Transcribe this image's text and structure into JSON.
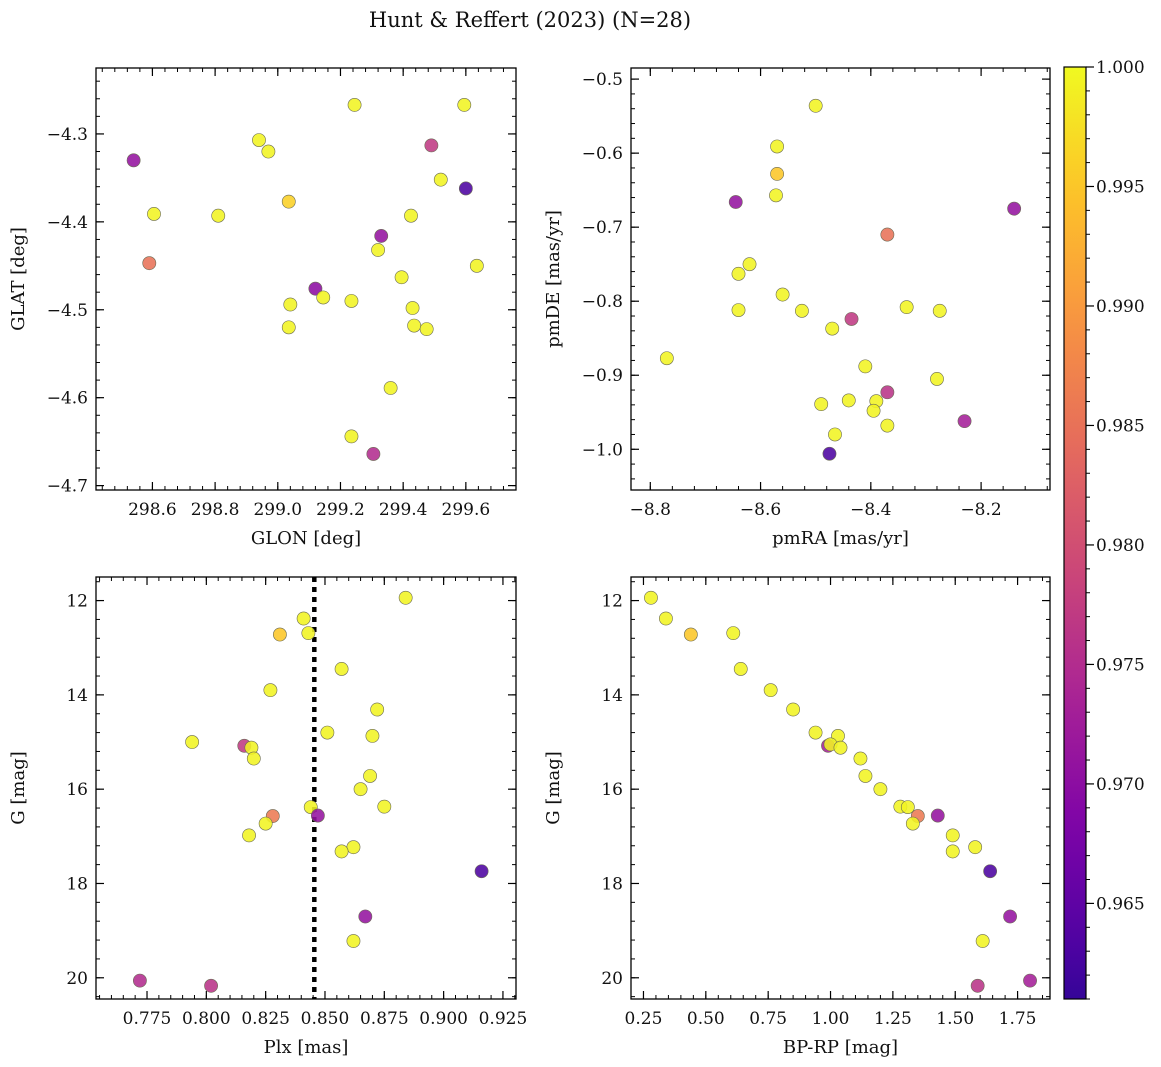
{
  "figure": {
    "title": "Hunt & Reffert (2023) (N=28)"
  },
  "colorbar": {
    "cmap": "plasma",
    "vmin": 0.961,
    "vmax": 1.0,
    "ticks": [
      0.965,
      0.97,
      0.975,
      0.98,
      0.985,
      0.99,
      0.995,
      1.0
    ],
    "tick_labels": [
      "0.965",
      "0.970",
      "0.975",
      "0.980",
      "0.985",
      "0.990",
      "0.995",
      "1.000"
    ]
  },
  "chart_data": [
    {
      "type": "scatter",
      "xlabel": "GLON [deg]",
      "ylabel": "GLAT [deg]",
      "xlim": [
        298.42,
        299.76
      ],
      "ylim": [
        -4.705,
        -4.225
      ],
      "xticks": [
        298.6,
        298.8,
        299.0,
        299.2,
        299.4,
        299.6
      ],
      "xtick_labels": [
        "298.6",
        "298.8",
        "299.0",
        "299.2",
        "299.4",
        "299.6"
      ],
      "yticks": [
        -4.3,
        -4.4,
        -4.5,
        -4.6,
        -4.7
      ],
      "ytick_labels": [
        "−4.3",
        "−4.4",
        "−4.5",
        "−4.6",
        "−4.7"
      ],
      "points": [
        {
          "x": 299.245,
          "y": -4.267,
          "c": 0.9995
        },
        {
          "x": 299.595,
          "y": -4.267,
          "c": 0.9995
        },
        {
          "x": 298.94,
          "y": -4.307,
          "c": 0.9995
        },
        {
          "x": 298.97,
          "y": -4.32,
          "c": 0.9995
        },
        {
          "x": 299.49,
          "y": -4.313,
          "c": 0.977
        },
        {
          "x": 298.54,
          "y": -4.33,
          "c": 0.971
        },
        {
          "x": 299.52,
          "y": -4.352,
          "c": 0.9995
        },
        {
          "x": 299.6,
          "y": -4.362,
          "c": 0.963
        },
        {
          "x": 299.035,
          "y": -4.377,
          "c": 0.996
        },
        {
          "x": 298.605,
          "y": -4.391,
          "c": 0.9995
        },
        {
          "x": 298.81,
          "y": -4.393,
          "c": 0.9995
        },
        {
          "x": 299.425,
          "y": -4.393,
          "c": 0.9995
        },
        {
          "x": 299.33,
          "y": -4.416,
          "c": 0.971
        },
        {
          "x": 299.32,
          "y": -4.432,
          "c": 0.9995
        },
        {
          "x": 298.59,
          "y": -4.447,
          "c": 0.985
        },
        {
          "x": 299.635,
          "y": -4.45,
          "c": 0.9995
        },
        {
          "x": 299.395,
          "y": -4.463,
          "c": 0.9995
        },
        {
          "x": 299.12,
          "y": -4.476,
          "c": 0.97
        },
        {
          "x": 299.145,
          "y": -4.486,
          "c": 0.9995
        },
        {
          "x": 299.235,
          "y": -4.49,
          "c": 0.9995
        },
        {
          "x": 299.04,
          "y": -4.494,
          "c": 0.9995
        },
        {
          "x": 299.43,
          "y": -4.498,
          "c": 0.9995
        },
        {
          "x": 299.435,
          "y": -4.518,
          "c": 0.9995
        },
        {
          "x": 299.035,
          "y": -4.52,
          "c": 0.9995
        },
        {
          "x": 299.475,
          "y": -4.522,
          "c": 0.9995
        },
        {
          "x": 299.36,
          "y": -4.589,
          "c": 0.9995
        },
        {
          "x": 299.235,
          "y": -4.644,
          "c": 0.9995
        },
        {
          "x": 299.305,
          "y": -4.664,
          "c": 0.975
        }
      ]
    },
    {
      "type": "scatter",
      "xlabel": "pmRA [mas/yr]",
      "ylabel": "pmDE [mas/yr]",
      "xlim": [
        -8.835,
        -8.075
      ],
      "ylim": [
        -1.055,
        -0.485
      ],
      "xticks": [
        -8.8,
        -8.6,
        -8.4,
        -8.2
      ],
      "xtick_labels": [
        "−8.8",
        "−8.6",
        "−8.4",
        "−8.2"
      ],
      "yticks": [
        -0.5,
        -0.6,
        -0.7,
        -0.8,
        -0.9,
        -1.0
      ],
      "ytick_labels": [
        "−0.5",
        "−0.6",
        "−0.7",
        "−0.8",
        "−0.9",
        "−1.0"
      ],
      "points": [
        {
          "x": -8.5,
          "y": -0.536,
          "c": 0.9995
        },
        {
          "x": -8.57,
          "y": -0.591,
          "c": 0.9995
        },
        {
          "x": -8.57,
          "y": -0.628,
          "c": 0.995
        },
        {
          "x": -8.572,
          "y": -0.657,
          "c": 0.9995
        },
        {
          "x": -8.645,
          "y": -0.666,
          "c": 0.971
        },
        {
          "x": -8.14,
          "y": -0.675,
          "c": 0.971
        },
        {
          "x": -8.37,
          "y": -0.71,
          "c": 0.985
        },
        {
          "x": -8.62,
          "y": -0.75,
          "c": 0.9995
        },
        {
          "x": -8.64,
          "y": -0.763,
          "c": 0.9995
        },
        {
          "x": -8.56,
          "y": -0.791,
          "c": 0.9995
        },
        {
          "x": -8.335,
          "y": -0.808,
          "c": 0.9995
        },
        {
          "x": -8.64,
          "y": -0.812,
          "c": 0.9995
        },
        {
          "x": -8.525,
          "y": -0.813,
          "c": 0.9995
        },
        {
          "x": -8.275,
          "y": -0.813,
          "c": 0.9995
        },
        {
          "x": -8.435,
          "y": -0.824,
          "c": 0.977
        },
        {
          "x": -8.47,
          "y": -0.837,
          "c": 0.9995
        },
        {
          "x": -8.77,
          "y": -0.877,
          "c": 0.9995
        },
        {
          "x": -8.41,
          "y": -0.888,
          "c": 0.9995
        },
        {
          "x": -8.28,
          "y": -0.905,
          "c": 0.9995
        },
        {
          "x": -8.37,
          "y": -0.923,
          "c": 0.976
        },
        {
          "x": -8.44,
          "y": -0.934,
          "c": 0.9995
        },
        {
          "x": -8.39,
          "y": -0.935,
          "c": 0.9995
        },
        {
          "x": -8.49,
          "y": -0.939,
          "c": 0.9995
        },
        {
          "x": -8.395,
          "y": -0.948,
          "c": 0.9995
        },
        {
          "x": -8.23,
          "y": -0.962,
          "c": 0.973
        },
        {
          "x": -8.37,
          "y": -0.968,
          "c": 0.9995
        },
        {
          "x": -8.465,
          "y": -0.98,
          "c": 0.9995
        },
        {
          "x": -8.475,
          "y": -1.006,
          "c": 0.963
        }
      ]
    },
    {
      "type": "scatter",
      "xlabel": "Plx [mas]",
      "ylabel": "G [mag]",
      "xlim": [
        0.7535,
        0.9305
      ],
      "ylim": [
        20.45,
        11.5
      ],
      "y_inverted": true,
      "vline": {
        "x": 0.8455,
        "style": "dotted"
      },
      "xticks": [
        0.775,
        0.8,
        0.825,
        0.85,
        0.875,
        0.9,
        0.925
      ],
      "xtick_labels": [
        "0.775",
        "0.800",
        "0.825",
        "0.850",
        "0.875",
        "0.900",
        "0.925"
      ],
      "yticks": [
        12,
        14,
        16,
        18,
        20
      ],
      "ytick_labels": [
        "12",
        "14",
        "16",
        "18",
        "20"
      ],
      "points": [
        {
          "x": 0.884,
          "y": 11.94,
          "c": 0.9995
        },
        {
          "x": 0.841,
          "y": 12.38,
          "c": 0.9995
        },
        {
          "x": 0.831,
          "y": 12.72,
          "c": 0.995
        },
        {
          "x": 0.843,
          "y": 12.69,
          "c": 0.9995
        },
        {
          "x": 0.857,
          "y": 13.45,
          "c": 0.9995
        },
        {
          "x": 0.827,
          "y": 13.9,
          "c": 0.9995
        },
        {
          "x": 0.872,
          "y": 14.31,
          "c": 0.9995
        },
        {
          "x": 0.851,
          "y": 14.8,
          "c": 0.9995
        },
        {
          "x": 0.87,
          "y": 14.87,
          "c": 0.9995
        },
        {
          "x": 0.794,
          "y": 15.0,
          "c": 0.9995
        },
        {
          "x": 0.816,
          "y": 15.08,
          "c": 0.977
        },
        {
          "x": 0.819,
          "y": 15.12,
          "c": 0.9995
        },
        {
          "x": 0.82,
          "y": 15.35,
          "c": 0.9995
        },
        {
          "x": 0.869,
          "y": 15.72,
          "c": 0.9995
        },
        {
          "x": 0.865,
          "y": 16.0,
          "c": 0.9995
        },
        {
          "x": 0.875,
          "y": 16.37,
          "c": 0.9995
        },
        {
          "x": 0.844,
          "y": 16.38,
          "c": 0.9995
        },
        {
          "x": 0.847,
          "y": 16.56,
          "c": 0.971
        },
        {
          "x": 0.828,
          "y": 16.57,
          "c": 0.986
        },
        {
          "x": 0.825,
          "y": 16.73,
          "c": 0.9995
        },
        {
          "x": 0.818,
          "y": 16.98,
          "c": 0.9995
        },
        {
          "x": 0.862,
          "y": 17.23,
          "c": 0.9995
        },
        {
          "x": 0.857,
          "y": 17.32,
          "c": 0.9995
        },
        {
          "x": 0.916,
          "y": 17.74,
          "c": 0.963
        },
        {
          "x": 0.867,
          "y": 18.7,
          "c": 0.971
        },
        {
          "x": 0.862,
          "y": 19.22,
          "c": 0.9995
        },
        {
          "x": 0.772,
          "y": 20.06,
          "c": 0.975
        },
        {
          "x": 0.802,
          "y": 20.17,
          "c": 0.976
        }
      ]
    },
    {
      "type": "scatter",
      "xlabel": "BP-RP [mag]",
      "ylabel": "G [mag]",
      "xlim": [
        0.2,
        1.88
      ],
      "ylim": [
        20.45,
        11.5
      ],
      "y_inverted": true,
      "xticks": [
        0.25,
        0.5,
        0.75,
        1.0,
        1.25,
        1.5,
        1.75
      ],
      "xtick_labels": [
        "0.25",
        "0.50",
        "0.75",
        "1.00",
        "1.25",
        "1.50",
        "1.75"
      ],
      "yticks": [
        12,
        14,
        16,
        18,
        20
      ],
      "ytick_labels": [
        "12",
        "14",
        "16",
        "18",
        "20"
      ],
      "points": [
        {
          "x": 0.28,
          "y": 11.94,
          "c": 0.9995
        },
        {
          "x": 0.34,
          "y": 12.38,
          "c": 0.9995
        },
        {
          "x": 0.44,
          "y": 12.72,
          "c": 0.995
        },
        {
          "x": 0.61,
          "y": 12.69,
          "c": 0.9995
        },
        {
          "x": 0.64,
          "y": 13.45,
          "c": 0.9995
        },
        {
          "x": 0.76,
          "y": 13.9,
          "c": 0.9995
        },
        {
          "x": 0.85,
          "y": 14.31,
          "c": 0.9995
        },
        {
          "x": 0.94,
          "y": 14.8,
          "c": 0.9995
        },
        {
          "x": 1.03,
          "y": 14.87,
          "c": 0.9995
        },
        {
          "x": 0.99,
          "y": 15.08,
          "c": 0.973
        },
        {
          "x": 1.0,
          "y": 15.05,
          "c": 0.9995
        },
        {
          "x": 1.04,
          "y": 15.12,
          "c": 0.9995
        },
        {
          "x": 1.12,
          "y": 15.35,
          "c": 0.9995
        },
        {
          "x": 1.14,
          "y": 15.72,
          "c": 0.9995
        },
        {
          "x": 1.2,
          "y": 16.0,
          "c": 0.9995
        },
        {
          "x": 1.28,
          "y": 16.37,
          "c": 0.9995
        },
        {
          "x": 1.31,
          "y": 16.38,
          "c": 0.9995
        },
        {
          "x": 1.35,
          "y": 16.57,
          "c": 0.986
        },
        {
          "x": 1.43,
          "y": 16.56,
          "c": 0.971
        },
        {
          "x": 1.33,
          "y": 16.73,
          "c": 0.9995
        },
        {
          "x": 1.49,
          "y": 16.98,
          "c": 0.9995
        },
        {
          "x": 1.58,
          "y": 17.23,
          "c": 0.9995
        },
        {
          "x": 1.49,
          "y": 17.32,
          "c": 0.9995
        },
        {
          "x": 1.64,
          "y": 17.74,
          "c": 0.963
        },
        {
          "x": 1.72,
          "y": 18.7,
          "c": 0.971
        },
        {
          "x": 1.61,
          "y": 19.22,
          "c": 0.9995
        },
        {
          "x": 1.8,
          "y": 20.06,
          "c": 0.973
        },
        {
          "x": 1.59,
          "y": 20.17,
          "c": 0.976
        }
      ]
    }
  ]
}
